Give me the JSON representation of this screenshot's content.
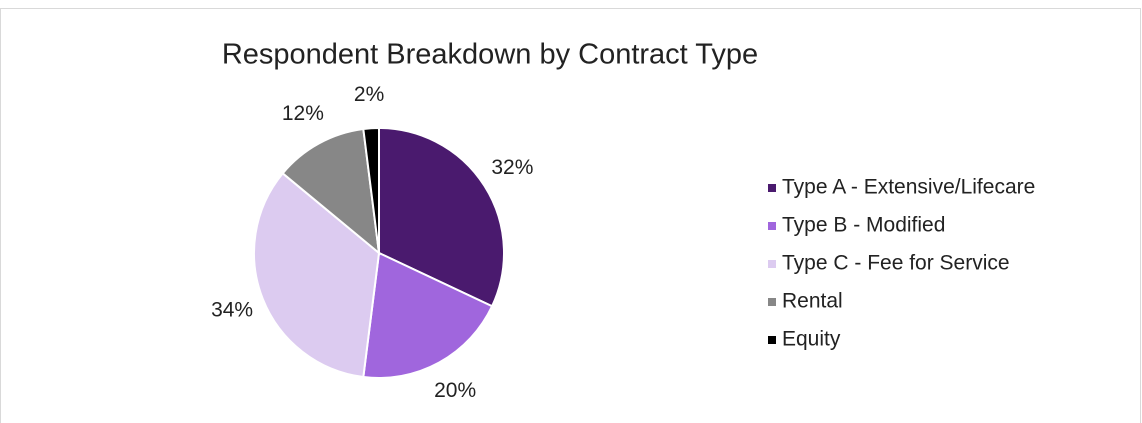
{
  "chart_data": {
    "type": "pie",
    "title": "Respondent Breakdown by Contract Type",
    "categories": [
      "Type A - Extensive/Lifecare",
      "Type B - Modified",
      "Type C - Fee for Service",
      "Rental",
      "Equity"
    ],
    "values": [
      32,
      20,
      34,
      12,
      2
    ],
    "value_labels": [
      "32%",
      "20%",
      "34%",
      "12%",
      "2%"
    ],
    "colors": [
      "#4a1a6e",
      "#a066dd",
      "#dccbf0",
      "#878787",
      "#000000"
    ],
    "legend": "right"
  }
}
